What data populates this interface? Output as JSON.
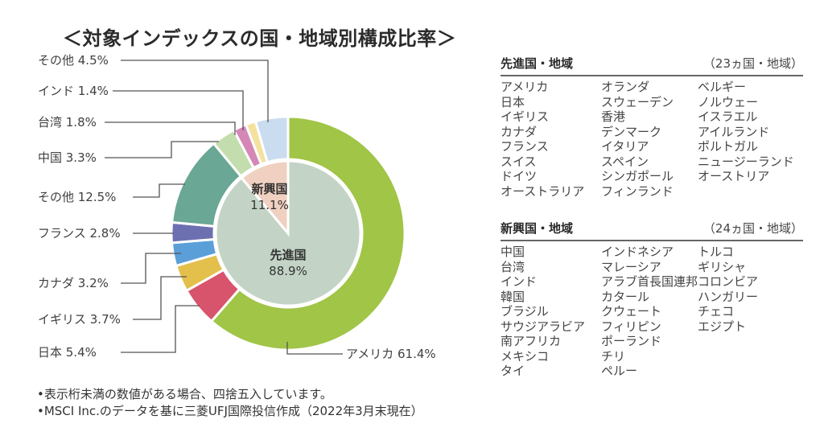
{
  "title": "＜対象インデックスの国・地域別構成比率＞",
  "chart_data": {
    "type": "pie",
    "title": "＜対象インデックスの国・地域別構成比率＞",
    "inner": [
      {
        "name": "先進国",
        "value": 88.9,
        "label": "88.9%",
        "color": "#c3d4c6"
      },
      {
        "name": "新興国",
        "value": 11.1,
        "label": "11.1%",
        "color": "#f0d0c1"
      }
    ],
    "outer": [
      {
        "name": "アメリカ",
        "value": 61.4,
        "label": "アメリカ 61.4%",
        "color": "#a0c547"
      },
      {
        "name": "日本",
        "value": 5.4,
        "label": "日本 5.4%",
        "color": "#d8546c"
      },
      {
        "name": "イギリス",
        "value": 3.7,
        "label": "イギリス 3.7%",
        "color": "#e3bf4c"
      },
      {
        "name": "カナダ",
        "value": 3.2,
        "label": "カナダ 3.2%",
        "color": "#5b9fd9"
      },
      {
        "name": "フランス",
        "value": 2.8,
        "label": "フランス 2.8%",
        "color": "#6d70b0"
      },
      {
        "name": "その他",
        "value": 12.5,
        "label": "その他 12.5%",
        "color": "#6aa794"
      },
      {
        "name": "中国",
        "value": 3.3,
        "label": "中国 3.3%",
        "color": "#c4ddae"
      },
      {
        "name": "台湾",
        "value": 1.8,
        "label": "台湾 1.8%",
        "color": "#d587b6"
      },
      {
        "name": "インド",
        "value": 1.4,
        "label": "インド 1.4%",
        "color": "#f4e19d"
      },
      {
        "name": "その他",
        "value": 4.5,
        "label": "その他 4.5%",
        "color": "#cadcef"
      }
    ]
  },
  "developed": {
    "heading": "先進国・地域",
    "count": "（23ヵ国・地域）",
    "columns": [
      [
        "アメリカ",
        "日本",
        "イギリス",
        "カナダ",
        "フランス",
        "スイス",
        "ドイツ",
        "オーストラリア"
      ],
      [
        "オランダ",
        "スウェーデン",
        "香港",
        "デンマーク",
        "イタリア",
        "スペイン",
        "シンガポール",
        "フィンランド"
      ],
      [
        "ベルギー",
        "ノルウェー",
        "イスラエル",
        "アイルランド",
        "ポルトガル",
        "ニュージーランド",
        "オーストリア"
      ]
    ]
  },
  "emerging": {
    "heading": "新興国・地域",
    "count": "（24ヵ国・地域）",
    "columns": [
      [
        "中国",
        "台湾",
        "インド",
        "韓国",
        "ブラジル",
        "サウジアラビア",
        "南アフリカ",
        "メキシコ",
        "タイ"
      ],
      [
        "インドネシア",
        "マレーシア",
        "アラブ首長国連邦",
        "カタール",
        "クウェート",
        "フィリピン",
        "ポーランド",
        "チリ",
        "ペルー"
      ],
      [
        "トルコ",
        "ギリシャ",
        "コロンビア",
        "ハンガリー",
        "チェコ",
        "エジプト"
      ]
    ]
  },
  "notes": [
    "•表示桁未満の数値がある場合、四捨五入しています。",
    "•MSCI Inc.のデータを基に三菱UFJ国際投信作成（2022年3月末現在）"
  ]
}
